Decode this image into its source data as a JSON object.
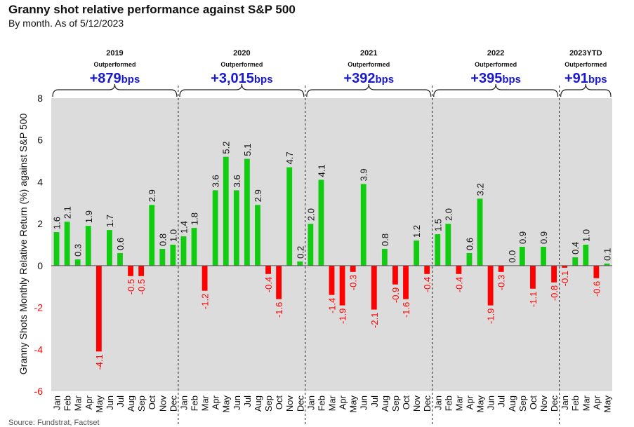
{
  "header": {
    "title": "Granny shot relative performance against S&P 500",
    "subtitle": "By month. As of 5/12/2023",
    "source": "Source: Fundstrat, Factset"
  },
  "colors": {
    "positive": "#12cc12",
    "negative": "#ff0000",
    "plot_bg": "#dcdcdc",
    "accent": "#1a1acc"
  },
  "chart_data": {
    "type": "bar",
    "title": "Granny shot relative performance against S&P 500",
    "ylabel": "Granny Shots Monthly Relative Return (%) against S&P 500",
    "xlabel": "",
    "ylim": [
      -6,
      8
    ],
    "yticks": [
      -6,
      -4,
      -2,
      0,
      2,
      4,
      6,
      8
    ],
    "groups": [
      {
        "year": "2019",
        "status": "Outperformed",
        "perf_value": "+879",
        "perf_unit": "bps",
        "months": [
          "Jan",
          "Feb",
          "Mar",
          "Apr",
          "May",
          "Jun",
          "Jul",
          "Aug",
          "Sep",
          "Oct",
          "Nov",
          "Dec"
        ],
        "values": [
          1.6,
          2.1,
          0.3,
          1.9,
          -4.1,
          1.7,
          0.6,
          -0.5,
          -0.5,
          2.9,
          0.8,
          1.0
        ]
      },
      {
        "year": "2020",
        "status": "Outperformed",
        "perf_value": "+3,015",
        "perf_unit": "bps",
        "months": [
          "Jan",
          "Feb",
          "Mar",
          "Apr",
          "May",
          "Jun",
          "Jul",
          "Aug",
          "Sep",
          "Oct",
          "Nov",
          "Dec"
        ],
        "values": [
          1.4,
          1.8,
          -1.2,
          3.6,
          5.2,
          3.6,
          5.1,
          2.9,
          -0.4,
          -1.6,
          4.7,
          0.2
        ]
      },
      {
        "year": "2021",
        "status": "Outperformed",
        "perf_value": "+392",
        "perf_unit": "bps",
        "months": [
          "Jan",
          "Feb",
          "Mar",
          "Apr",
          "May",
          "Jun",
          "Jul",
          "Aug",
          "Sep",
          "Oct",
          "Nov",
          "Dec"
        ],
        "values": [
          2.0,
          4.1,
          -1.4,
          -1.9,
          -0.3,
          3.9,
          -2.1,
          0.8,
          -0.9,
          -1.6,
          1.2,
          -0.4
        ]
      },
      {
        "year": "2022",
        "status": "Outperformed",
        "perf_value": "+395",
        "perf_unit": "bps",
        "months": [
          "Jan",
          "Feb",
          "Mar",
          "Apr",
          "May",
          "Jun",
          "Jul",
          "Aug",
          "Sep",
          "Oct",
          "Nov",
          "Dec"
        ],
        "values": [
          1.5,
          2.0,
          -0.4,
          0.6,
          3.2,
          -1.9,
          -0.3,
          0.0,
          0.9,
          -1.1,
          0.9,
          -0.8
        ]
      },
      {
        "year": "2023YTD",
        "status": "Outperformed",
        "perf_value": "+91",
        "perf_unit": "bps",
        "months": [
          "Jan",
          "Feb",
          "Mar",
          "Apr",
          "May"
        ],
        "values": [
          -0.1,
          0.4,
          1.0,
          -0.6,
          0.1
        ]
      }
    ]
  }
}
